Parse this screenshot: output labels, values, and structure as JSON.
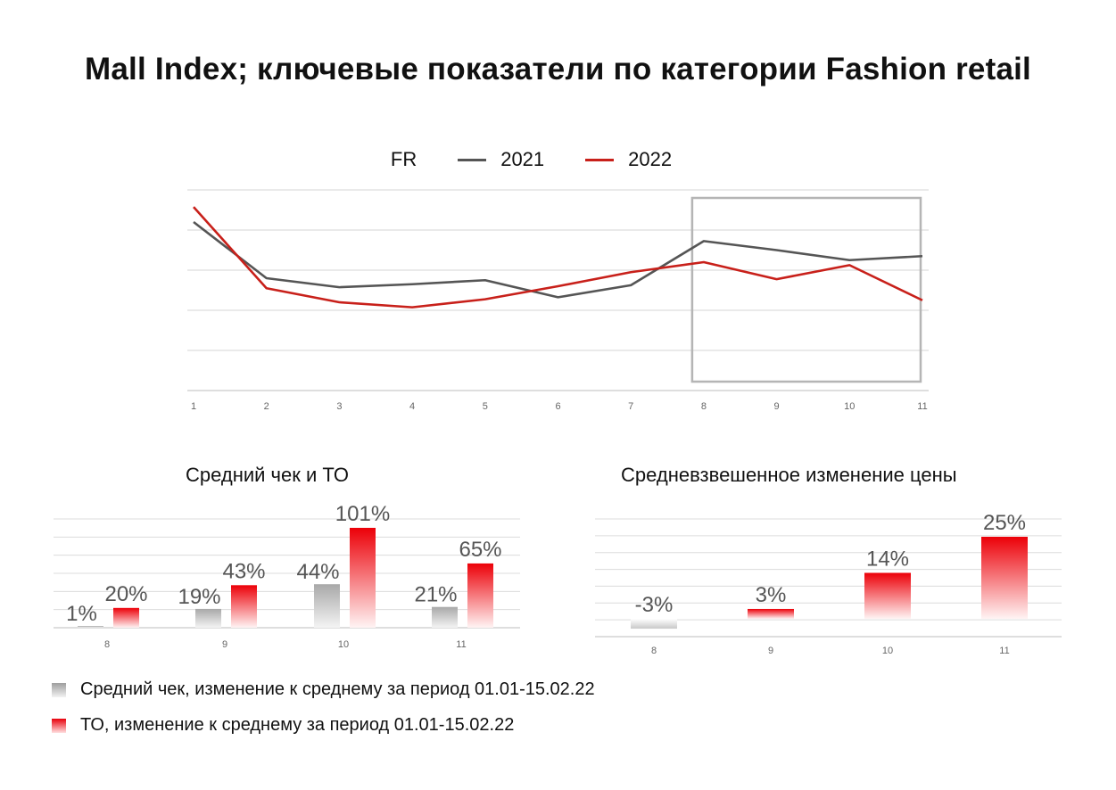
{
  "title": "Mall Index; ключевые показатели по категории Fashion retail",
  "line_chart": {
    "legend_label": "FR",
    "series_colors": [
      "#555555",
      "#c8201a"
    ]
  },
  "bar_chart_left": {
    "title": "Средний чек и ТО"
  },
  "bar_chart_right": {
    "title": "Средневзвешенное изменение цены"
  },
  "legend_bottom": [
    {
      "label": "Средний чек, изменение к среднему за период 01.01-15.02.22",
      "color": "#9e9e9e"
    },
    {
      "label": "ТО, изменение к среднему за период 01.01-15.02.22",
      "color": "#e8000b"
    }
  ],
  "chart_data": [
    {
      "type": "line",
      "title": "",
      "x": [
        "1",
        "2",
        "3",
        "4",
        "5",
        "6",
        "7",
        "8",
        "9",
        "10",
        "11"
      ],
      "ylim": [
        0,
        100
      ],
      "grid": true,
      "axis_values_shown": false,
      "highlight_range": [
        "8",
        "11"
      ],
      "series": [
        {
          "name": "2021",
          "values": [
            84,
            56,
            51.5,
            53,
            55,
            46.5,
            52.5,
            74.5,
            70,
            65,
            67
          ]
        },
        {
          "name": "2022",
          "values": [
            91.5,
            51,
            44,
            41.5,
            45.5,
            52,
            59,
            64,
            55.5,
            62.5,
            45
          ]
        }
      ]
    },
    {
      "type": "bar",
      "title": "Средний чек и ТО",
      "categories": [
        "8",
        "9",
        "10",
        "11"
      ],
      "ylim": [
        0,
        110
      ],
      "grid": true,
      "series": [
        {
          "name": "Средний чек, изменение к среднему за период 01.01-15.02.22",
          "values": [
            1,
            19,
            44,
            21
          ],
          "labels": [
            "1%",
            "19%",
            "44%",
            "21%"
          ]
        },
        {
          "name": "ТО, изменение к среднему за период 01.01-15.02.22",
          "values": [
            20,
            43,
            101,
            65
          ],
          "labels": [
            "20%",
            "43%",
            "101%",
            "65%"
          ]
        }
      ]
    },
    {
      "type": "bar",
      "title": "Средневзвешенное изменение цены",
      "categories": [
        "8",
        "9",
        "10",
        "11"
      ],
      "ylim": [
        -5,
        30
      ],
      "grid": true,
      "series": [
        {
          "values": [
            -3,
            3,
            14,
            25
          ],
          "labels": [
            "-3%",
            "3%",
            "14%",
            "25%"
          ]
        }
      ]
    }
  ]
}
